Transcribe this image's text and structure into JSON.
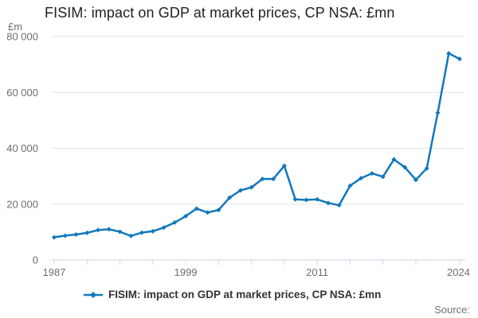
{
  "title": "FISIM: impact on GDP at market prices, CP NSA: £mn",
  "y_axis_unit": "£m",
  "source_label": "Source:",
  "legend": {
    "label": "FISIM: impact on GDP at market prices, CP NSA: £mn"
  },
  "colors": {
    "line": "#1178bd",
    "grid": "#e6e6e6",
    "axis": "#ccd6eb",
    "tick_text": "#6e6e6e",
    "title_text": "#222222",
    "legend_text": "#333333",
    "source_text": "#737373"
  },
  "chart_data": {
    "type": "line",
    "title": "FISIM: impact on GDP at market prices, CP NSA: £mn",
    "xlabel": "",
    "ylabel": "£m",
    "x": [
      1987,
      1988,
      1989,
      1990,
      1991,
      1992,
      1993,
      1994,
      1995,
      1996,
      1997,
      1998,
      1999,
      2000,
      2001,
      2002,
      2003,
      2004,
      2005,
      2006,
      2007,
      2008,
      2009,
      2010,
      2011,
      2012,
      2013,
      2014,
      2015,
      2016,
      2017,
      2018,
      2019,
      2020,
      2021,
      2022,
      2023,
      2024
    ],
    "values": [
      8100,
      8700,
      9100,
      9700,
      10700,
      11000,
      10100,
      8600,
      9800,
      10300,
      11600,
      13400,
      15700,
      18400,
      17000,
      17900,
      22300,
      24900,
      26000,
      29000,
      29000,
      33700,
      21700,
      21500,
      21700,
      20400,
      19600,
      26600,
      29300,
      31000,
      29800,
      36000,
      33200,
      28700,
      32800,
      52700,
      74000,
      72000
    ],
    "ylim": [
      0,
      80000
    ],
    "yticks": [
      0,
      20000,
      40000,
      60000,
      80000
    ],
    "ytick_labels": [
      "0",
      "20 000",
      "40 000",
      "60 000",
      "80 000"
    ],
    "xticks": [
      1987,
      1990,
      1993,
      1996,
      1999,
      2002,
      2005,
      2008,
      2011,
      2014,
      2017,
      2020,
      2024
    ],
    "xtick_labeled_years": [
      1987,
      1999,
      2011,
      2024
    ],
    "grid": "horizontal",
    "legend_position": "bottom",
    "series_name": "FISIM: impact on GDP at market prices, CP NSA: £mn"
  }
}
